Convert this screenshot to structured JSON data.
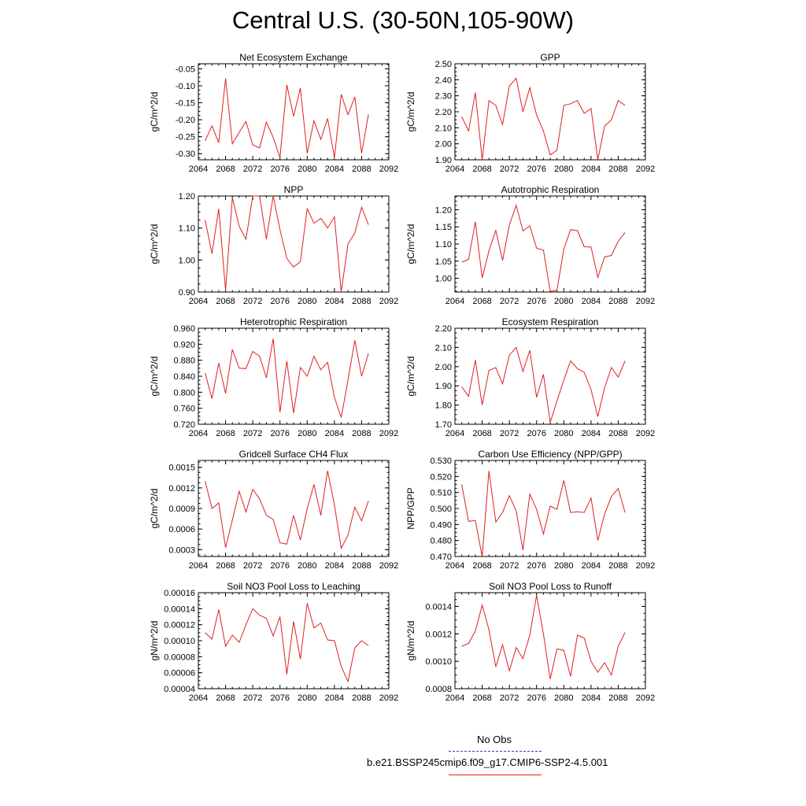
{
  "title": "Central U.S. (30-50N,105-90W)",
  "legend": {
    "obs_label": "No Obs",
    "obs_color": "#3b3bd0",
    "model_label": "b.e21.BSSP245cmip6.f09_g17.CMIP6-SSP2-4.5.001",
    "model_color": "#e02020"
  },
  "chart_data": [
    {
      "type": "line",
      "title": "Net Ecosystem Exchange",
      "ylabel": "gC/m^2/d",
      "xlabel": "",
      "xlim": [
        2064,
        2092
      ],
      "ylim": [
        -0.318,
        -0.035
      ],
      "xticks": [
        "2064",
        "2068",
        "2072",
        "2076",
        "2080",
        "2084",
        "2088",
        "2092"
      ],
      "yticks": [
        "-0.05",
        "-0.10",
        "-0.15",
        "-0.20",
        "-0.25",
        "-0.30"
      ],
      "grid": false,
      "series": [
        {
          "color": "#e02020",
          "x": [
            2065,
            2066,
            2067,
            2068,
            2069,
            2070,
            2071,
            2072,
            2073,
            2074,
            2075,
            2076,
            2077,
            2078,
            2079,
            2080,
            2081,
            2082,
            2083,
            2084,
            2085,
            2086,
            2087,
            2088,
            2089
          ],
          "y": [
            -0.262,
            -0.218,
            -0.268,
            -0.078,
            -0.271,
            -0.237,
            -0.205,
            -0.274,
            -0.283,
            -0.207,
            -0.252,
            -0.312,
            -0.097,
            -0.19,
            -0.107,
            -0.299,
            -0.203,
            -0.258,
            -0.196,
            -0.312,
            -0.125,
            -0.185,
            -0.133,
            -0.299,
            -0.184
          ]
        }
      ]
    },
    {
      "type": "line",
      "title": "GPP",
      "ylabel": "gC/m^2/d",
      "xlabel": "",
      "xlim": [
        2064,
        2092
      ],
      "ylim": [
        1.9,
        2.5
      ],
      "xticks": [
        "2064",
        "2068",
        "2072",
        "2076",
        "2080",
        "2084",
        "2088",
        "2092"
      ],
      "yticks": [
        "2.50",
        "2.40",
        "2.30",
        "2.20",
        "2.10",
        "2.00",
        "1.90"
      ],
      "grid": false,
      "series": [
        {
          "color": "#e02020",
          "x": [
            2065,
            2066,
            2067,
            2068,
            2069,
            2070,
            2071,
            2072,
            2073,
            2074,
            2075,
            2076,
            2077,
            2078,
            2079,
            2080,
            2081,
            2082,
            2083,
            2084,
            2085,
            2086,
            2087,
            2088,
            2089
          ],
          "y": [
            2.17,
            2.08,
            2.32,
            1.9,
            2.27,
            2.24,
            2.12,
            2.36,
            2.41,
            2.2,
            2.35,
            2.18,
            2.08,
            1.93,
            1.96,
            2.24,
            2.25,
            2.27,
            2.19,
            2.22,
            1.9,
            2.11,
            2.15,
            2.27,
            2.24
          ]
        }
      ]
    },
    {
      "type": "line",
      "title": "NPP",
      "ylabel": "gC/m^2/d",
      "xlabel": "",
      "xlim": [
        2064,
        2092
      ],
      "ylim": [
        0.9,
        1.2
      ],
      "xticks": [
        "2064",
        "2068",
        "2072",
        "2076",
        "2080",
        "2084",
        "2088",
        "2092"
      ],
      "yticks": [
        "1.20",
        "1.10",
        "1.00",
        "0.90"
      ],
      "grid": false,
      "series": [
        {
          "color": "#e02020",
          "x": [
            2065,
            2066,
            2067,
            2068,
            2069,
            2070,
            2071,
            2072,
            2073,
            2074,
            2075,
            2076,
            2077,
            2078,
            2079,
            2080,
            2081,
            2082,
            2083,
            2084,
            2085,
            2086,
            2087,
            2088,
            2089
          ],
          "y": [
            1.125,
            1.02,
            1.16,
            0.905,
            1.195,
            1.105,
            1.065,
            1.2,
            1.2,
            1.065,
            1.2,
            1.095,
            1.005,
            0.978,
            0.995,
            1.16,
            1.115,
            1.13,
            1.1,
            1.135,
            0.9,
            1.05,
            1.085,
            1.165,
            1.11
          ]
        }
      ]
    },
    {
      "type": "line",
      "title": "Autotrophic Respiration",
      "ylabel": "gC/m^2/d",
      "xlabel": "",
      "xlim": [
        2064,
        2092
      ],
      "ylim": [
        0.96,
        1.24
      ],
      "xticks": [
        "2064",
        "2068",
        "2072",
        "2076",
        "2080",
        "2084",
        "2088",
        "2092"
      ],
      "yticks": [
        "1.20",
        "1.15",
        "1.10",
        "1.05",
        "1.00"
      ],
      "grid": false,
      "series": [
        {
          "color": "#e02020",
          "x": [
            2065,
            2066,
            2067,
            2068,
            2069,
            2070,
            2071,
            2072,
            2073,
            2074,
            2075,
            2076,
            2077,
            2078,
            2079,
            2080,
            2081,
            2082,
            2083,
            2084,
            2085,
            2086,
            2087,
            2088,
            2089
          ],
          "y": [
            1.047,
            1.055,
            1.165,
            1.001,
            1.08,
            1.14,
            1.052,
            1.155,
            1.213,
            1.138,
            1.153,
            1.088,
            1.082,
            0.962,
            0.965,
            1.085,
            1.142,
            1.139,
            1.092,
            1.091,
            1.003,
            1.062,
            1.067,
            1.108,
            1.133
          ]
        }
      ]
    },
    {
      "type": "line",
      "title": "Heterotrophic Respiration",
      "ylabel": "gC/m^2/d",
      "xlabel": "",
      "xlim": [
        2064,
        2092
      ],
      "ylim": [
        0.72,
        0.96
      ],
      "xticks": [
        "2064",
        "2068",
        "2072",
        "2076",
        "2080",
        "2084",
        "2088",
        "2092"
      ],
      "yticks": [
        "0.960",
        "0.920",
        "0.880",
        "0.840",
        "0.800",
        "0.760",
        "0.720"
      ],
      "grid": false,
      "series": [
        {
          "color": "#e02020",
          "x": [
            2065,
            2066,
            2067,
            2068,
            2069,
            2070,
            2071,
            2072,
            2073,
            2074,
            2075,
            2076,
            2077,
            2078,
            2079,
            2080,
            2081,
            2082,
            2083,
            2084,
            2085,
            2086,
            2087,
            2088,
            2089
          ],
          "y": [
            0.848,
            0.784,
            0.873,
            0.797,
            0.907,
            0.86,
            0.859,
            0.902,
            0.89,
            0.836,
            0.934,
            0.75,
            0.878,
            0.748,
            0.862,
            0.84,
            0.89,
            0.856,
            0.875,
            0.787,
            0.737,
            0.83,
            0.93,
            0.84,
            0.897
          ]
        }
      ]
    },
    {
      "type": "line",
      "title": "Ecosystem Respiration",
      "ylabel": "gC/m^2/d",
      "xlabel": "",
      "xlim": [
        2064,
        2092
      ],
      "ylim": [
        1.7,
        2.2
      ],
      "xticks": [
        "2064",
        "2068",
        "2072",
        "2076",
        "2080",
        "2084",
        "2088",
        "2092"
      ],
      "yticks": [
        "2.20",
        "2.10",
        "2.00",
        "1.90",
        "1.80",
        "1.70"
      ],
      "grid": false,
      "series": [
        {
          "color": "#e02020",
          "x": [
            2065,
            2066,
            2067,
            2068,
            2069,
            2070,
            2071,
            2072,
            2073,
            2074,
            2075,
            2076,
            2077,
            2078,
            2079,
            2080,
            2081,
            2082,
            2083,
            2084,
            2085,
            2086,
            2087,
            2088,
            2089
          ],
          "y": [
            1.895,
            1.845,
            2.035,
            1.8,
            1.98,
            1.995,
            1.91,
            2.06,
            2.1,
            1.975,
            2.085,
            1.84,
            1.96,
            1.71,
            1.82,
            1.93,
            2.03,
            1.99,
            1.97,
            1.88,
            1.74,
            1.89,
            1.995,
            1.945,
            2.03
          ]
        }
      ]
    },
    {
      "type": "line",
      "title": "Gridcell Surface CH4 Flux",
      "ylabel": "gC/m^2/d",
      "xlabel": "",
      "xlim": [
        2064,
        2092
      ],
      "ylim": [
        0.0002,
        0.0016
      ],
      "xticks": [
        "2064",
        "2068",
        "2072",
        "2076",
        "2080",
        "2084",
        "2088",
        "2092"
      ],
      "yticks": [
        "0.0015",
        "0.0012",
        "0.0009",
        "0.0006",
        "0.0003"
      ],
      "grid": false,
      "series": [
        {
          "color": "#e02020",
          "x": [
            2065,
            2066,
            2067,
            2068,
            2069,
            2070,
            2071,
            2072,
            2073,
            2074,
            2075,
            2076,
            2077,
            2078,
            2079,
            2080,
            2081,
            2082,
            2083,
            2084,
            2085,
            2086,
            2087,
            2088,
            2089
          ],
          "y": [
            0.0013,
            0.0009,
            0.00098,
            0.00033,
            0.00073,
            0.00115,
            0.00085,
            0.00118,
            0.00104,
            0.0008,
            0.00074,
            0.0004,
            0.00038,
            0.0008,
            0.00044,
            0.0009,
            0.00125,
            0.0008,
            0.00145,
            0.00095,
            0.00032,
            0.00051,
            0.00092,
            0.00072,
            0.00101
          ]
        }
      ]
    },
    {
      "type": "line",
      "title": "Carbon Use Efficiency (NPP/GPP)",
      "ylabel": "NPP/GPP",
      "xlabel": "",
      "xlim": [
        2064,
        2092
      ],
      "ylim": [
        0.47,
        0.53
      ],
      "xticks": [
        "2064",
        "2068",
        "2072",
        "2076",
        "2080",
        "2084",
        "2088",
        "2092"
      ],
      "yticks": [
        "0.530",
        "0.520",
        "0.510",
        "0.500",
        "0.490",
        "0.480",
        "0.470"
      ],
      "grid": false,
      "series": [
        {
          "color": "#e02020",
          "x": [
            2065,
            2066,
            2067,
            2068,
            2069,
            2070,
            2071,
            2072,
            2073,
            2074,
            2075,
            2076,
            2077,
            2078,
            2079,
            2080,
            2081,
            2082,
            2083,
            2084,
            2085,
            2086,
            2087,
            2088,
            2089
          ],
          "y": [
            0.515,
            0.492,
            0.4925,
            0.47,
            0.5235,
            0.4915,
            0.4975,
            0.508,
            0.4985,
            0.474,
            0.509,
            0.4995,
            0.484,
            0.5015,
            0.4995,
            0.5175,
            0.4975,
            0.498,
            0.4975,
            0.5065,
            0.48,
            0.4965,
            0.5075,
            0.5125,
            0.4975
          ]
        }
      ]
    },
    {
      "type": "line",
      "title": "Soil NO3 Pool Loss to Leaching",
      "ylabel": "gN/m^2/d",
      "xlabel": "",
      "xlim": [
        2064,
        2092
      ],
      "ylim": [
        4e-05,
        0.00016
      ],
      "xticks": [
        "2064",
        "2068",
        "2072",
        "2076",
        "2080",
        "2084",
        "2088",
        "2092"
      ],
      "yticks": [
        "0.00016",
        "0.00014",
        "0.00012",
        "0.00010",
        "0.00008",
        "0.00006",
        "0.00004"
      ],
      "grid": false,
      "series": [
        {
          "color": "#e02020",
          "x": [
            2065,
            2066,
            2067,
            2068,
            2069,
            2070,
            2071,
            2072,
            2073,
            2074,
            2075,
            2076,
            2077,
            2078,
            2079,
            2080,
            2081,
            2082,
            2083,
            2084,
            2085,
            2086,
            2087,
            2088,
            2089
          ],
          "y": [
            0.00011,
            0.000102,
            0.000139,
            9.3e-05,
            0.000107,
            9.8e-05,
            0.00012,
            0.00014,
            0.000132,
            0.000128,
            0.000106,
            0.00013,
            5.8e-05,
            0.000124,
            7.7e-05,
            0.000147,
            0.000116,
            0.000122,
            0.000101,
            0.0001,
            6.8e-05,
            4.9e-05,
            9.1e-05,
            0.0001,
            9.4e-05
          ]
        }
      ]
    },
    {
      "type": "line",
      "title": "Soil NO3 Pool Loss to Runoff",
      "ylabel": "gN/m^2/d",
      "xlabel": "",
      "xlim": [
        2064,
        2092
      ],
      "ylim": [
        0.0008,
        0.0015
      ],
      "xticks": [
        "2064",
        "2068",
        "2072",
        "2076",
        "2080",
        "2084",
        "2088",
        "2092"
      ],
      "yticks": [
        "0.0014",
        "0.0012",
        "0.0010",
        "0.0008"
      ],
      "grid": false,
      "series": [
        {
          "color": "#e02020",
          "x": [
            2065,
            2066,
            2067,
            2068,
            2069,
            2070,
            2071,
            2072,
            2073,
            2074,
            2075,
            2076,
            2077,
            2078,
            2079,
            2080,
            2081,
            2082,
            2083,
            2084,
            2085,
            2086,
            2087,
            2088,
            2089
          ],
          "y": [
            0.00111,
            0.00113,
            0.00122,
            0.00141,
            0.00123,
            0.00096,
            0.00112,
            0.00093,
            0.0011,
            0.00102,
            0.00119,
            0.00148,
            0.0012,
            0.00087,
            0.00109,
            0.00108,
            0.00089,
            0.00119,
            0.00117,
            0.001,
            0.00092,
            0.00099,
            0.0009,
            0.00111,
            0.00121
          ]
        }
      ]
    }
  ]
}
